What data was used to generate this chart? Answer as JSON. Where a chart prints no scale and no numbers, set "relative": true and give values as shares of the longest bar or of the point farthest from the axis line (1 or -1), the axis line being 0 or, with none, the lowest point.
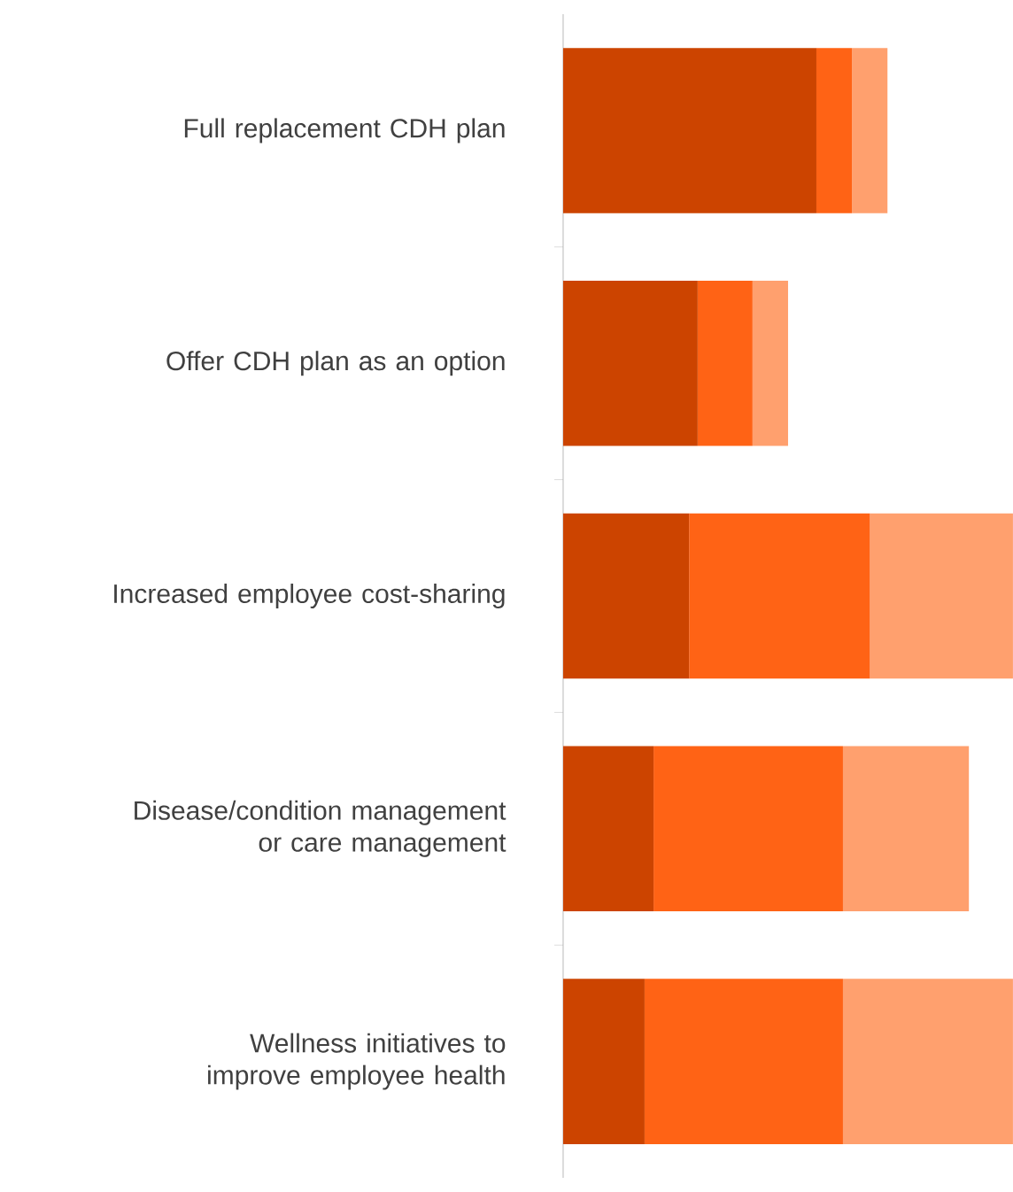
{
  "chart_data": {
    "type": "bar",
    "orientation": "horizontal",
    "stacked": true,
    "relative": true,
    "categories": [
      "Full replacement CDH plan",
      "Offer CDH plan as an option",
      "Increased employee cost-sharing",
      "Disease/condition management or care management",
      "Wellness initiatives to improve employee health"
    ],
    "series": [
      {
        "color": "#cc4400",
        "values": [
          0.563,
          0.299,
          0.28,
          0.201,
          0.181
        ]
      },
      {
        "color": "#ff6315",
        "values": [
          0.079,
          0.122,
          0.402,
          0.421,
          0.441
        ]
      },
      {
        "color": "#ffa06e",
        "values": [
          0.079,
          0.079,
          0.318,
          0.28,
          0.378
        ]
      }
    ]
  }
}
